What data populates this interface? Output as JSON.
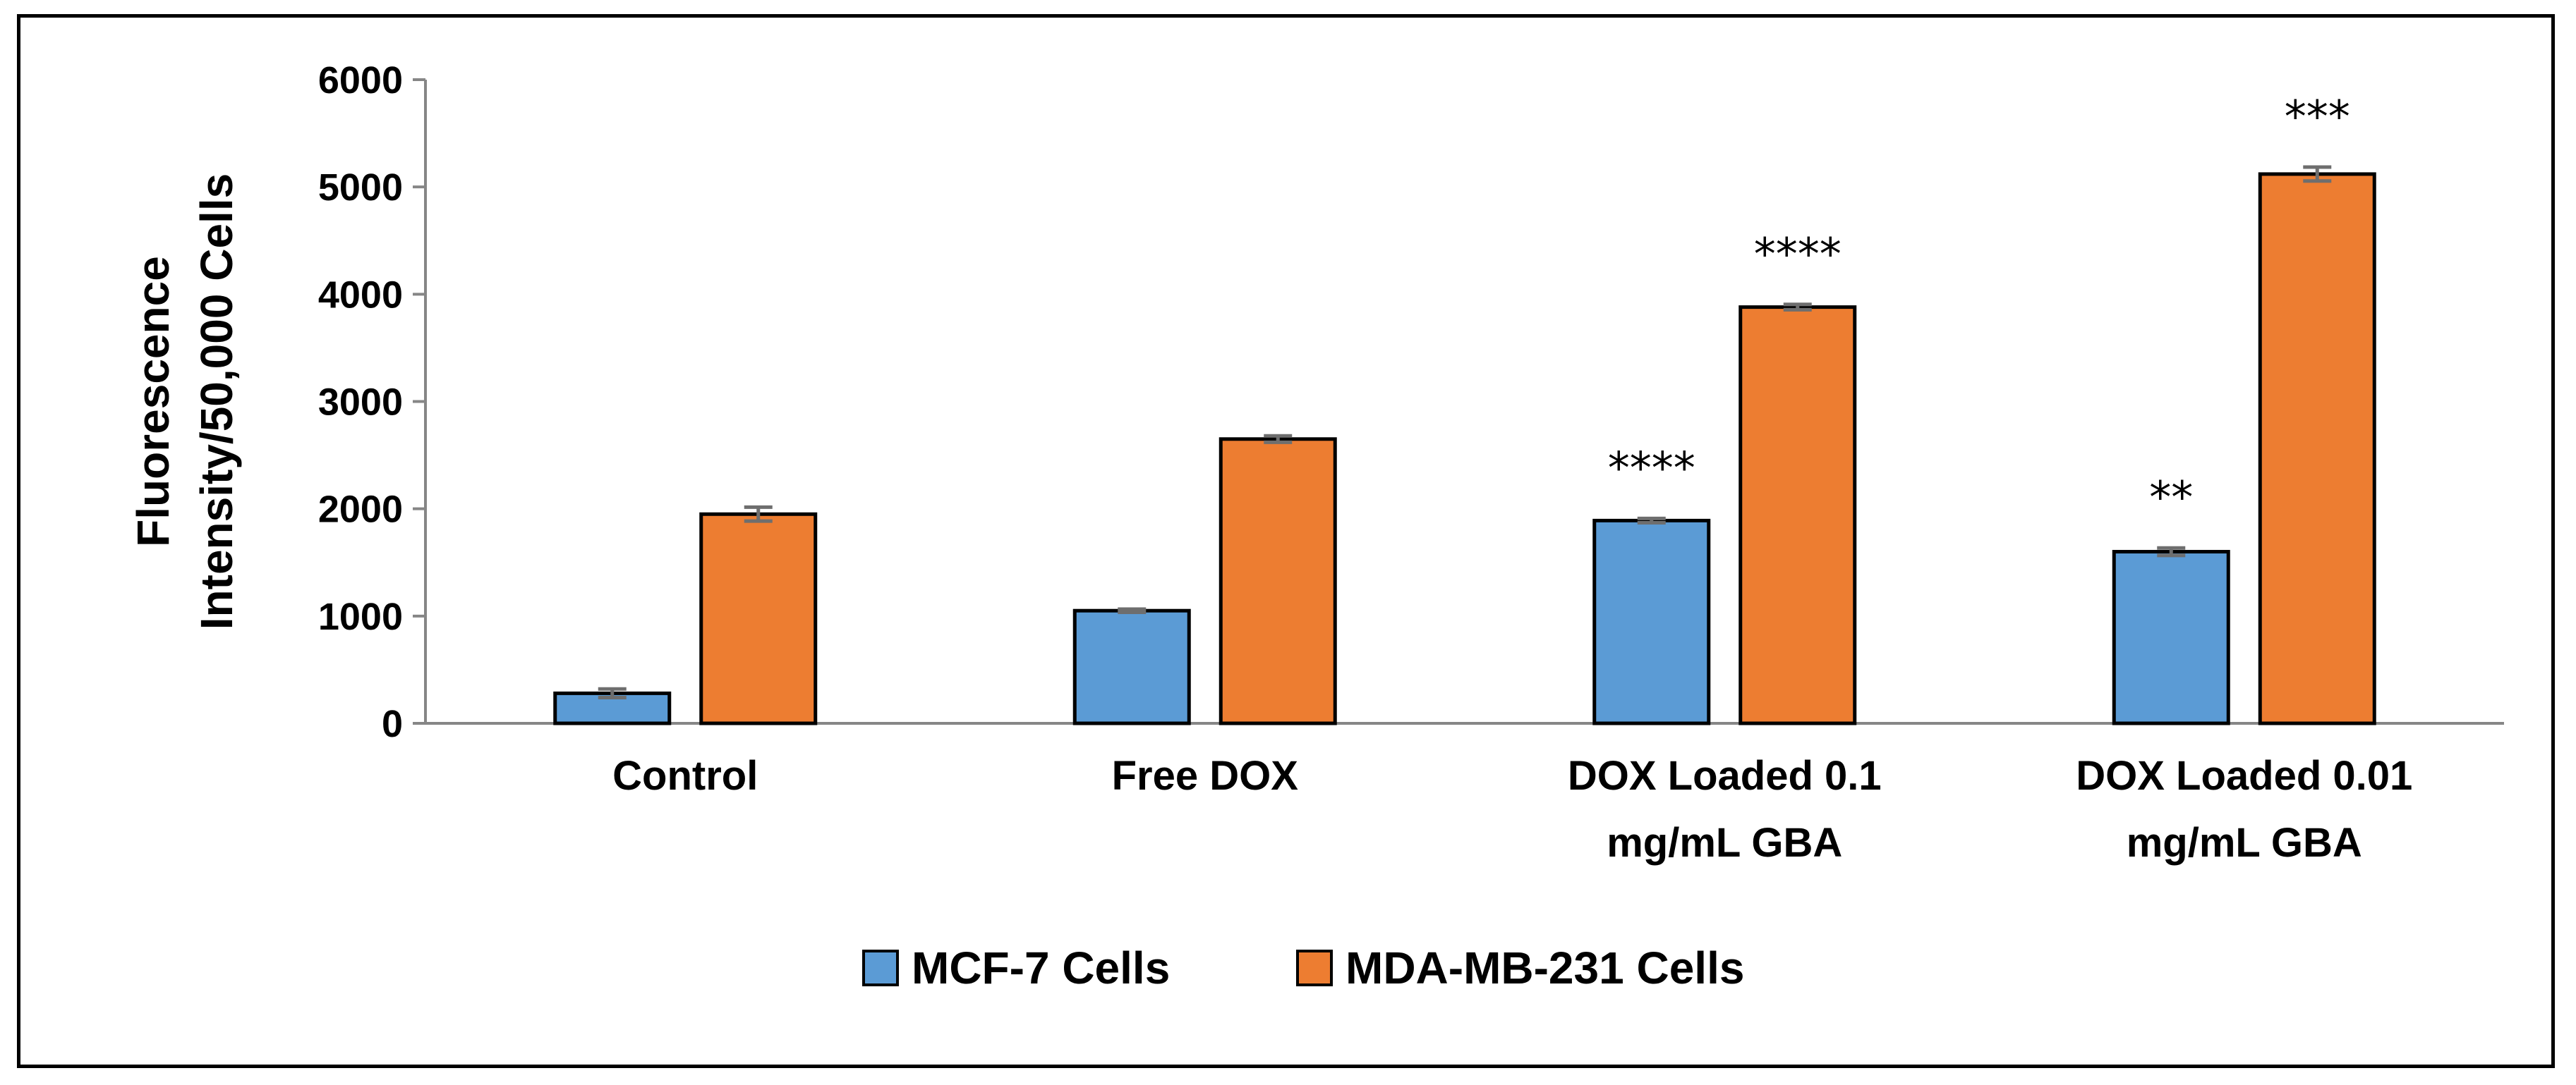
{
  "chart_data": {
    "type": "bar",
    "title": "",
    "xlabel": "",
    "ylabel_lines": [
      "Fluorescence",
      "Intensity/50,000 Cells"
    ],
    "ylim": [
      0,
      6000
    ],
    "yticks": [
      0,
      1000,
      2000,
      3000,
      4000,
      5000,
      6000
    ],
    "categories": [
      [
        "Control"
      ],
      [
        "Free DOX"
      ],
      [
        "DOX Loaded 0.1",
        "mg/mL GBA"
      ],
      [
        "DOX Loaded 0.01",
        "mg/mL GBA"
      ]
    ],
    "series": [
      {
        "name": "MCF-7 Cells",
        "color": "#5B9BD5",
        "values": [
          280,
          1050,
          1890,
          1600
        ],
        "errors": [
          40,
          15,
          20,
          35
        ],
        "significance": [
          "",
          "",
          "****",
          "**"
        ]
      },
      {
        "name": "MDA-MB-231 Cells",
        "color": "#ED7D31",
        "values": [
          1950,
          2650,
          3880,
          5120
        ],
        "errors": [
          65,
          30,
          25,
          65
        ],
        "significance": [
          "",
          "",
          "****",
          "***"
        ]
      }
    ],
    "legend_position": "bottom-center",
    "grid": false
  }
}
